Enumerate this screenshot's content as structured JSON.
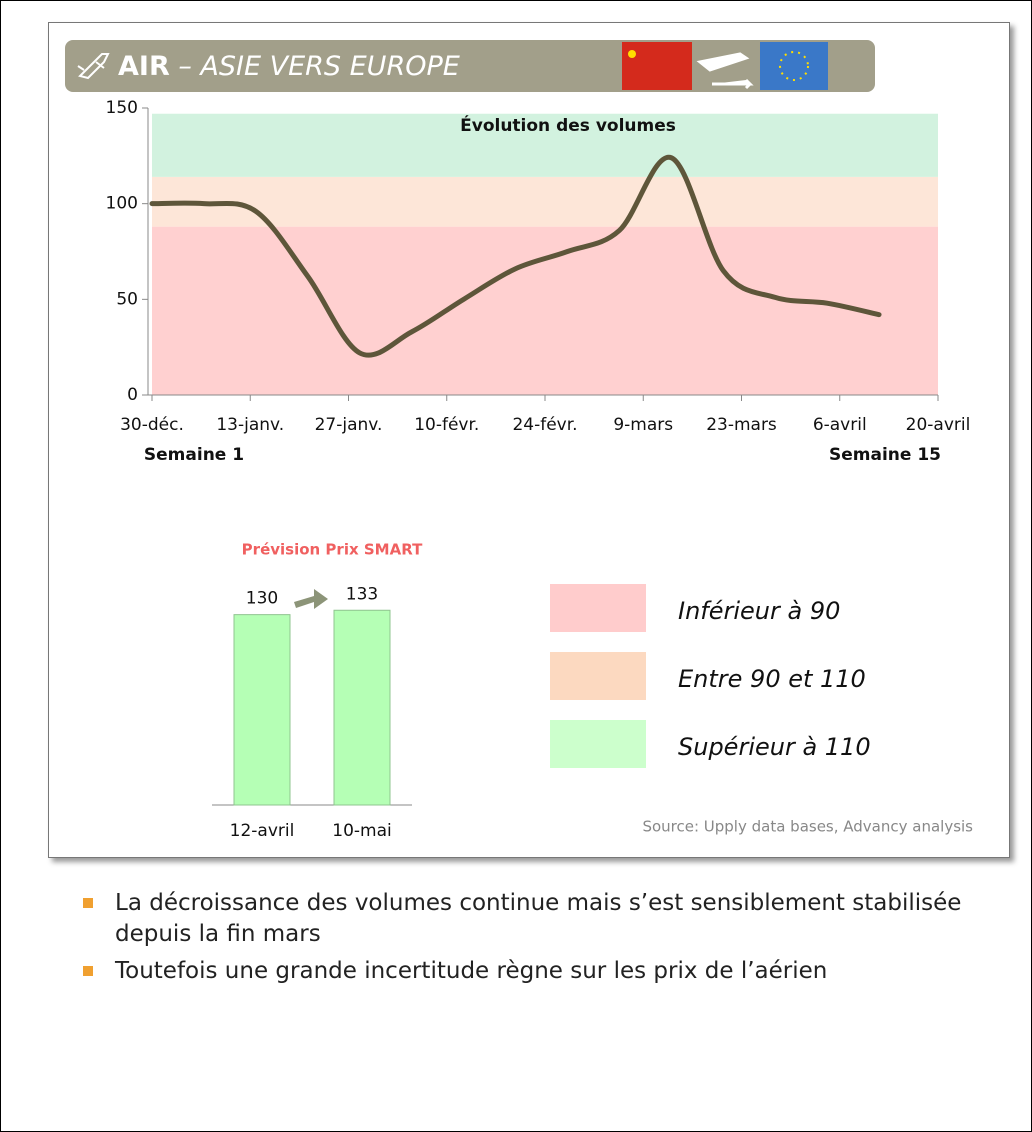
{
  "header": {
    "title_bold": "AIR",
    "title_rest": " – ASIE VERS EUROPE"
  },
  "chart_data": [
    {
      "type": "line",
      "title": "Évolution des volumes",
      "x": [
        0,
        7.4,
        14.8,
        22.2,
        29.6,
        37,
        44.4,
        51.8,
        59.2,
        66.6,
        74,
        81.4,
        88.8,
        96.2,
        103.6
      ],
      "series": [
        {
          "name": "Volumes",
          "color": "#5e563a",
          "values": [
            100,
            100,
            96,
            62,
            22,
            33,
            50,
            66,
            75,
            86,
            124,
            65,
            51,
            48,
            42
          ]
        }
      ],
      "xlim": [
        0,
        112
      ],
      "xticks": [
        {
          "value": 0,
          "label": "30-déc."
        },
        {
          "value": 14,
          "label": "13-janv."
        },
        {
          "value": 28,
          "label": "27-janv."
        },
        {
          "value": 42,
          "label": "10-févr."
        },
        {
          "value": 56,
          "label": "24-févr."
        },
        {
          "value": 70,
          "label": "9-mars"
        },
        {
          "value": 84,
          "label": "23-mars"
        },
        {
          "value": 98,
          "label": "6-avril"
        },
        {
          "value": 112,
          "label": "20-avril"
        }
      ],
      "ylim": [
        0,
        150
      ],
      "yticks": [
        0,
        50,
        100,
        150
      ],
      "bands": [
        {
          "from": 0,
          "to": 88,
          "color": "#ffd0d0"
        },
        {
          "from": 88,
          "to": 114,
          "color": "#fde6d8"
        },
        {
          "from": 114,
          "to": 147,
          "color": "#d2f2df"
        }
      ],
      "annotations": [
        "Semaine 1",
        "Semaine 15"
      ]
    },
    {
      "type": "bar",
      "title": "Prévision Prix SMART",
      "categories": [
        "12-avril",
        "10-mai"
      ],
      "values": [
        130,
        133
      ],
      "color": "#b5ffb5",
      "ylim": [
        0,
        140
      ]
    }
  ],
  "legend": [
    {
      "label": "Inférieur à 90",
      "color": "#ffcccc"
    },
    {
      "label": "Entre 90 et  110",
      "color": "#fcd9c0"
    },
    {
      "label": "Supérieur à 110",
      "color": "#ccffcc"
    }
  ],
  "source": "Source: Upply data bases, Advancy analysis",
  "bullets": [
    "La décroissance des volumes continue mais s’est sensiblement stabilisée depuis la fin mars",
    "Toutefois une grande incertitude règne sur les prix de l’aérien"
  ]
}
